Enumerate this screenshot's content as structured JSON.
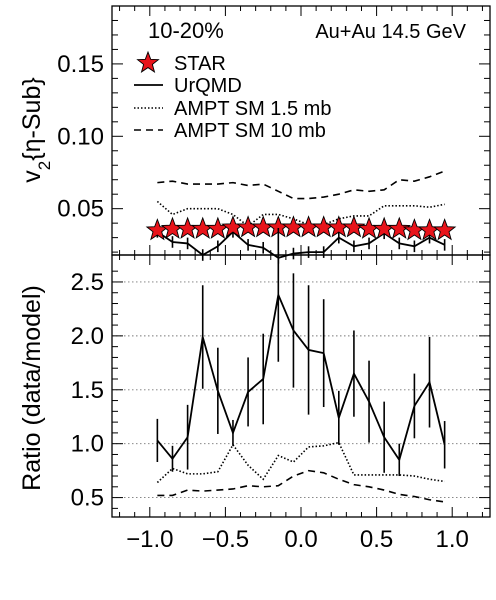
{
  "chart_data": [
    {
      "type": "scatter",
      "ylabel": "v₂{η-Sub}",
      "ylabel_main": "v",
      "ylabel_sub": "2",
      "ylabel_rest": "{η-Sub}",
      "label_centrality": "10-20%",
      "label_system": "Au+Au 14.5 GeV",
      "xlim": [
        -1.25,
        1.25
      ],
      "ylim": [
        0.018,
        0.19
      ],
      "yticks": [
        0.05,
        0.1,
        0.15
      ],
      "ytick_labels": [
        "0.05",
        "0.10",
        "0.15"
      ],
      "legend_position": "top-left",
      "x": [
        -0.95,
        -0.85,
        -0.75,
        -0.65,
        -0.55,
        -0.45,
        -0.35,
        -0.25,
        -0.15,
        -0.05,
        0.05,
        0.15,
        0.25,
        0.35,
        0.45,
        0.55,
        0.65,
        0.75,
        0.85,
        0.95
      ],
      "series": [
        {
          "name": "STAR",
          "style": "star",
          "color": "#e8141b",
          "values": [
            0.035,
            0.036,
            0.036,
            0.036,
            0.036,
            0.037,
            0.037,
            0.037,
            0.037,
            0.037,
            0.037,
            0.037,
            0.037,
            0.037,
            0.036,
            0.036,
            0.036,
            0.035,
            0.035,
            0.035
          ]
        },
        {
          "name": "UrQMD",
          "style": "solid",
          "values": [
            0.034,
            0.027,
            0.026,
            0.018,
            0.024,
            0.034,
            0.025,
            0.023,
            0.016,
            0.019,
            0.02,
            0.02,
            0.03,
            0.024,
            0.026,
            0.033,
            0.026,
            0.024,
            0.03,
            0.025
          ],
          "errors": [
            0.004,
            0.004,
            0.004,
            0.004,
            0.004,
            0.004,
            0.004,
            0.004,
            0.004,
            0.004,
            0.004,
            0.004,
            0.004,
            0.004,
            0.004,
            0.004,
            0.004,
            0.004,
            0.004,
            0.004
          ]
        },
        {
          "name": "AMPT SM 1.5 mb",
          "style": "dotted",
          "values": [
            0.055,
            0.046,
            0.05,
            0.05,
            0.05,
            0.046,
            0.038,
            0.046,
            0.046,
            0.043,
            0.039,
            0.039,
            0.043,
            0.045,
            0.045,
            0.052,
            0.052,
            0.052,
            0.051,
            0.053
          ]
        },
        {
          "name": "AMPT SM 10 mb",
          "style": "dashed",
          "values": [
            0.068,
            0.069,
            0.067,
            0.067,
            0.067,
            0.068,
            0.066,
            0.067,
            0.062,
            0.057,
            0.057,
            0.058,
            0.06,
            0.063,
            0.062,
            0.063,
            0.07,
            0.069,
            0.072,
            0.076
          ]
        }
      ]
    },
    {
      "type": "line",
      "xlabel": "",
      "ylabel": "Ratio (data/model)",
      "xlim": [
        -1.25,
        1.25
      ],
      "ylim": [
        0.32,
        2.75
      ],
      "xticks": [
        -1.0,
        -0.5,
        0.0,
        0.5,
        1.0
      ],
      "xtick_labels": [
        "−1.0",
        "−0.5",
        "0.0",
        "0.5",
        "1.0"
      ],
      "yticks": [
        0.5,
        1.0,
        1.5,
        2.0,
        2.5
      ],
      "ytick_labels": [
        "0.5",
        "1.0",
        "1.5",
        "2.0",
        "2.5"
      ],
      "grid": "horizontal dotted",
      "x": [
        -0.95,
        -0.85,
        -0.75,
        -0.65,
        -0.55,
        -0.45,
        -0.35,
        -0.25,
        -0.15,
        -0.05,
        0.05,
        0.15,
        0.25,
        0.35,
        0.45,
        0.55,
        0.65,
        0.75,
        0.85,
        0.95
      ],
      "series": [
        {
          "name": "UrQMD",
          "style": "solid",
          "values": [
            1.03,
            0.86,
            1.06,
            1.99,
            1.49,
            1.1,
            1.48,
            1.6,
            2.38,
            2.05,
            1.87,
            1.84,
            1.24,
            1.65,
            1.39,
            1.06,
            0.85,
            1.35,
            1.57,
            0.99
          ],
          "errors": [
            0.2,
            0.12,
            0.3,
            0.48,
            0.4,
            0.12,
            0.32,
            0.42,
            0.62,
            0.53,
            0.6,
            0.5,
            0.25,
            0.4,
            0.38,
            0.33,
            0.15,
            0.3,
            0.42,
            0.22
          ]
        },
        {
          "name": "AMPT SM 1.5 mb",
          "style": "dotted",
          "values": [
            0.64,
            0.77,
            0.72,
            0.72,
            0.74,
            0.99,
            0.8,
            0.67,
            0.89,
            0.83,
            0.97,
            0.98,
            1.01,
            0.71,
            0.71,
            0.71,
            0.71,
            0.7,
            0.67,
            0.65
          ]
        },
        {
          "name": "AMPT SM 10 mb",
          "style": "dashed",
          "values": [
            0.52,
            0.52,
            0.57,
            0.56,
            0.57,
            0.58,
            0.61,
            0.6,
            0.61,
            0.7,
            0.75,
            0.73,
            0.67,
            0.62,
            0.6,
            0.57,
            0.53,
            0.51,
            0.48,
            0.46
          ]
        }
      ]
    }
  ]
}
